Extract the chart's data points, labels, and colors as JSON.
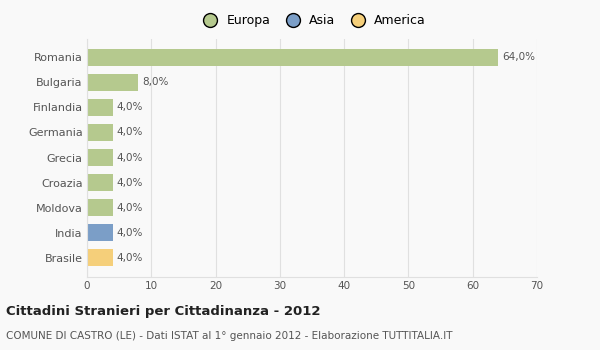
{
  "countries": [
    "Romania",
    "Bulgaria",
    "Finlandia",
    "Germania",
    "Grecia",
    "Croazia",
    "Moldova",
    "India",
    "Brasile"
  ],
  "values": [
    64.0,
    8.0,
    4.0,
    4.0,
    4.0,
    4.0,
    4.0,
    4.0,
    4.0
  ],
  "labels": [
    "64,0%",
    "8,0%",
    "4,0%",
    "4,0%",
    "4,0%",
    "4,0%",
    "4,0%",
    "4,0%",
    "4,0%"
  ],
  "colors": [
    "#b5c98e",
    "#b5c98e",
    "#b5c98e",
    "#b5c98e",
    "#b5c98e",
    "#b5c98e",
    "#b5c98e",
    "#7b9ec7",
    "#f5cf7a"
  ],
  "legend_labels": [
    "Europa",
    "Asia",
    "America"
  ],
  "legend_colors": [
    "#b5c98e",
    "#7b9ec7",
    "#f5cf7a"
  ],
  "xlim": [
    0,
    70
  ],
  "xticks": [
    0,
    10,
    20,
    30,
    40,
    50,
    60,
    70
  ],
  "title": "Cittadini Stranieri per Cittadinanza - 2012",
  "subtitle": "COMUNE DI CASTRO (LE) - Dati ISTAT al 1° gennaio 2012 - Elaborazione TUTTITALIA.IT",
  "bg_color": "#f9f9f9",
  "grid_color": "#e0e0e0",
  "bar_height": 0.65
}
